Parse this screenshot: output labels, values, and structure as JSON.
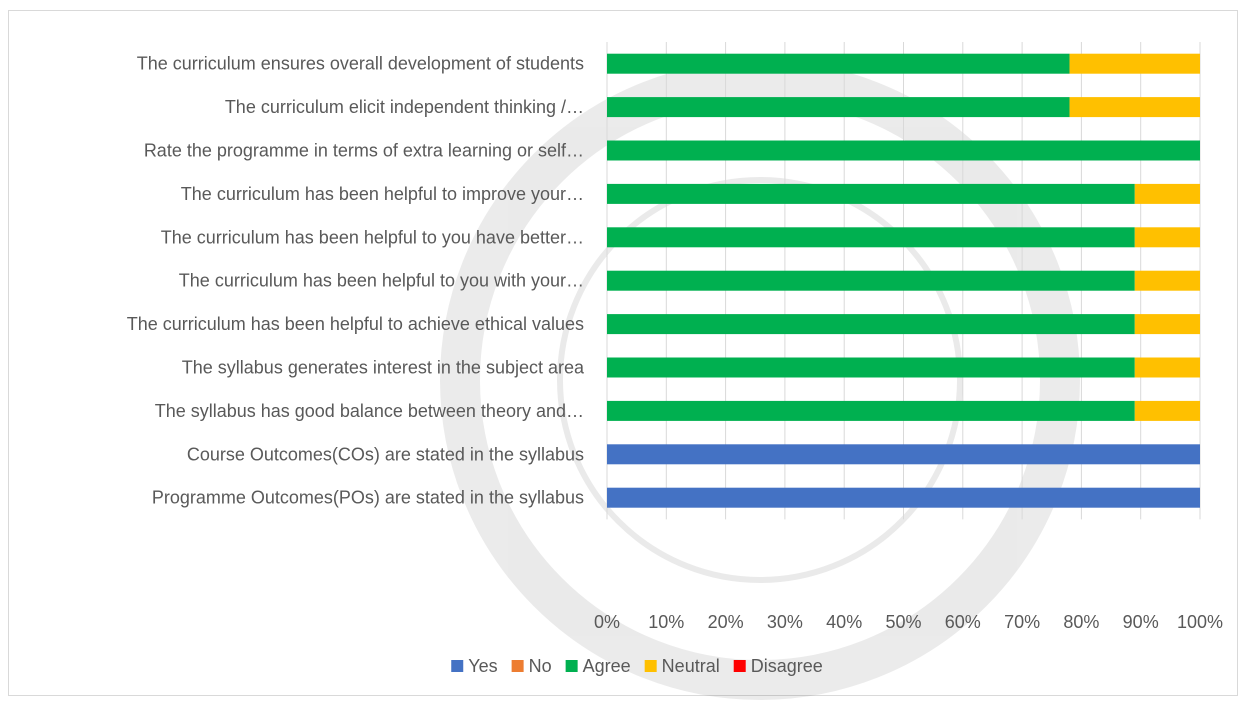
{
  "chart_data": {
    "type": "bar",
    "orientation": "horizontal",
    "stacked": "percent",
    "categories": [
      "The curriculum ensures overall development of students",
      "The curriculum elicit independent thinking /…",
      "Rate the programme in terms of extra learning or self…",
      "The curriculum has been helpful to improve your…",
      "The curriculum has been helpful to you have better…",
      "The curriculum has been helpful to you with your…",
      "The curriculum has been helpful to achieve ethical values",
      "The syllabus generates interest in the subject area",
      "The syllabus has good balance between theory and…",
      "Course Outcomes(COs) are stated in the syllabus",
      "Programme Outcomes(POs) are stated in the syllabus"
    ],
    "series": [
      {
        "name": "Yes",
        "color": "#4472C4",
        "values": [
          0,
          0,
          0,
          0,
          0,
          0,
          0,
          0,
          0,
          100,
          100
        ]
      },
      {
        "name": "No",
        "color": "#ED7D31",
        "values": [
          0,
          0,
          0,
          0,
          0,
          0,
          0,
          0,
          0,
          0,
          0
        ]
      },
      {
        "name": "Agree",
        "color": "#00B050",
        "values": [
          78,
          78,
          100,
          89,
          89,
          89,
          89,
          89,
          89,
          0,
          0
        ]
      },
      {
        "name": "Neutral",
        "color": "#FFC000",
        "values": [
          22,
          22,
          0,
          11,
          11,
          11,
          11,
          11,
          11,
          0,
          0
        ]
      },
      {
        "name": "Disagree",
        "color": "#FF0000",
        "values": [
          0,
          0,
          0,
          0,
          0,
          0,
          0,
          0,
          0,
          0,
          0
        ]
      }
    ],
    "x_ticks": [
      "0%",
      "10%",
      "20%",
      "30%",
      "40%",
      "50%",
      "60%",
      "70%",
      "80%",
      "90%",
      "100%"
    ],
    "xlim": [
      0,
      100
    ],
    "gridlines": true,
    "legend_position": "bottom",
    "title": "",
    "xlabel": "",
    "ylabel": ""
  }
}
